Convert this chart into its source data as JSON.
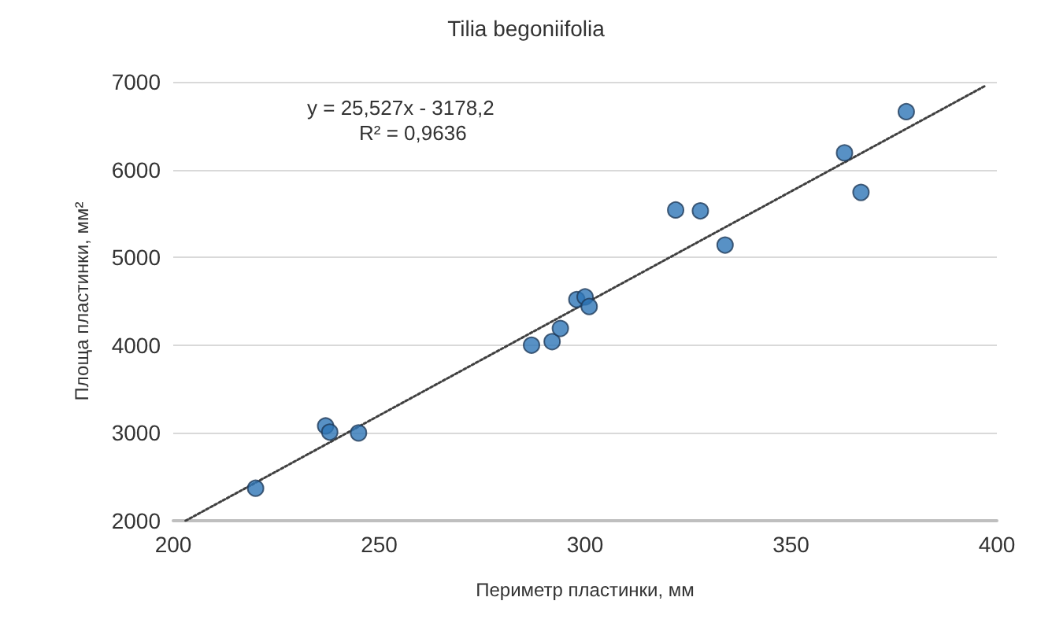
{
  "chart_data": {
    "type": "scatter",
    "title": "Tilia begoniifolia",
    "xlabel": "Периметр пластинки, мм",
    "ylabel": "Площа пластинки, мм²",
    "annotations": [
      "y = 25,527x - 3178,2",
      "R² = 0,9636"
    ],
    "series": [
      {
        "color": "#2e75b6",
        "marker": "circle",
        "x": [
          220,
          237,
          238,
          245,
          287,
          292,
          294,
          298,
          300,
          301,
          322,
          328,
          334,
          363,
          367,
          378
        ],
        "values": [
          2370,
          3080,
          3010,
          3000,
          4000,
          4040,
          4190,
          4520,
          4550,
          4440,
          5540,
          5530,
          5140,
          6190,
          5740,
          6660
        ]
      },
      {
        "type": "line",
        "color": "#404040",
        "line_style": "dotted",
        "marker": "none",
        "x": [
          203,
          397
        ],
        "values": [
          2000,
          6950
        ]
      }
    ],
    "xlim": [
      200,
      400
    ],
    "xticks": [
      200,
      250,
      300,
      350,
      400
    ],
    "ylim": [
      2000,
      7000
    ],
    "yticks": [
      2000,
      3000,
      4000,
      5000,
      6000,
      7000
    ],
    "grid": "y"
  }
}
